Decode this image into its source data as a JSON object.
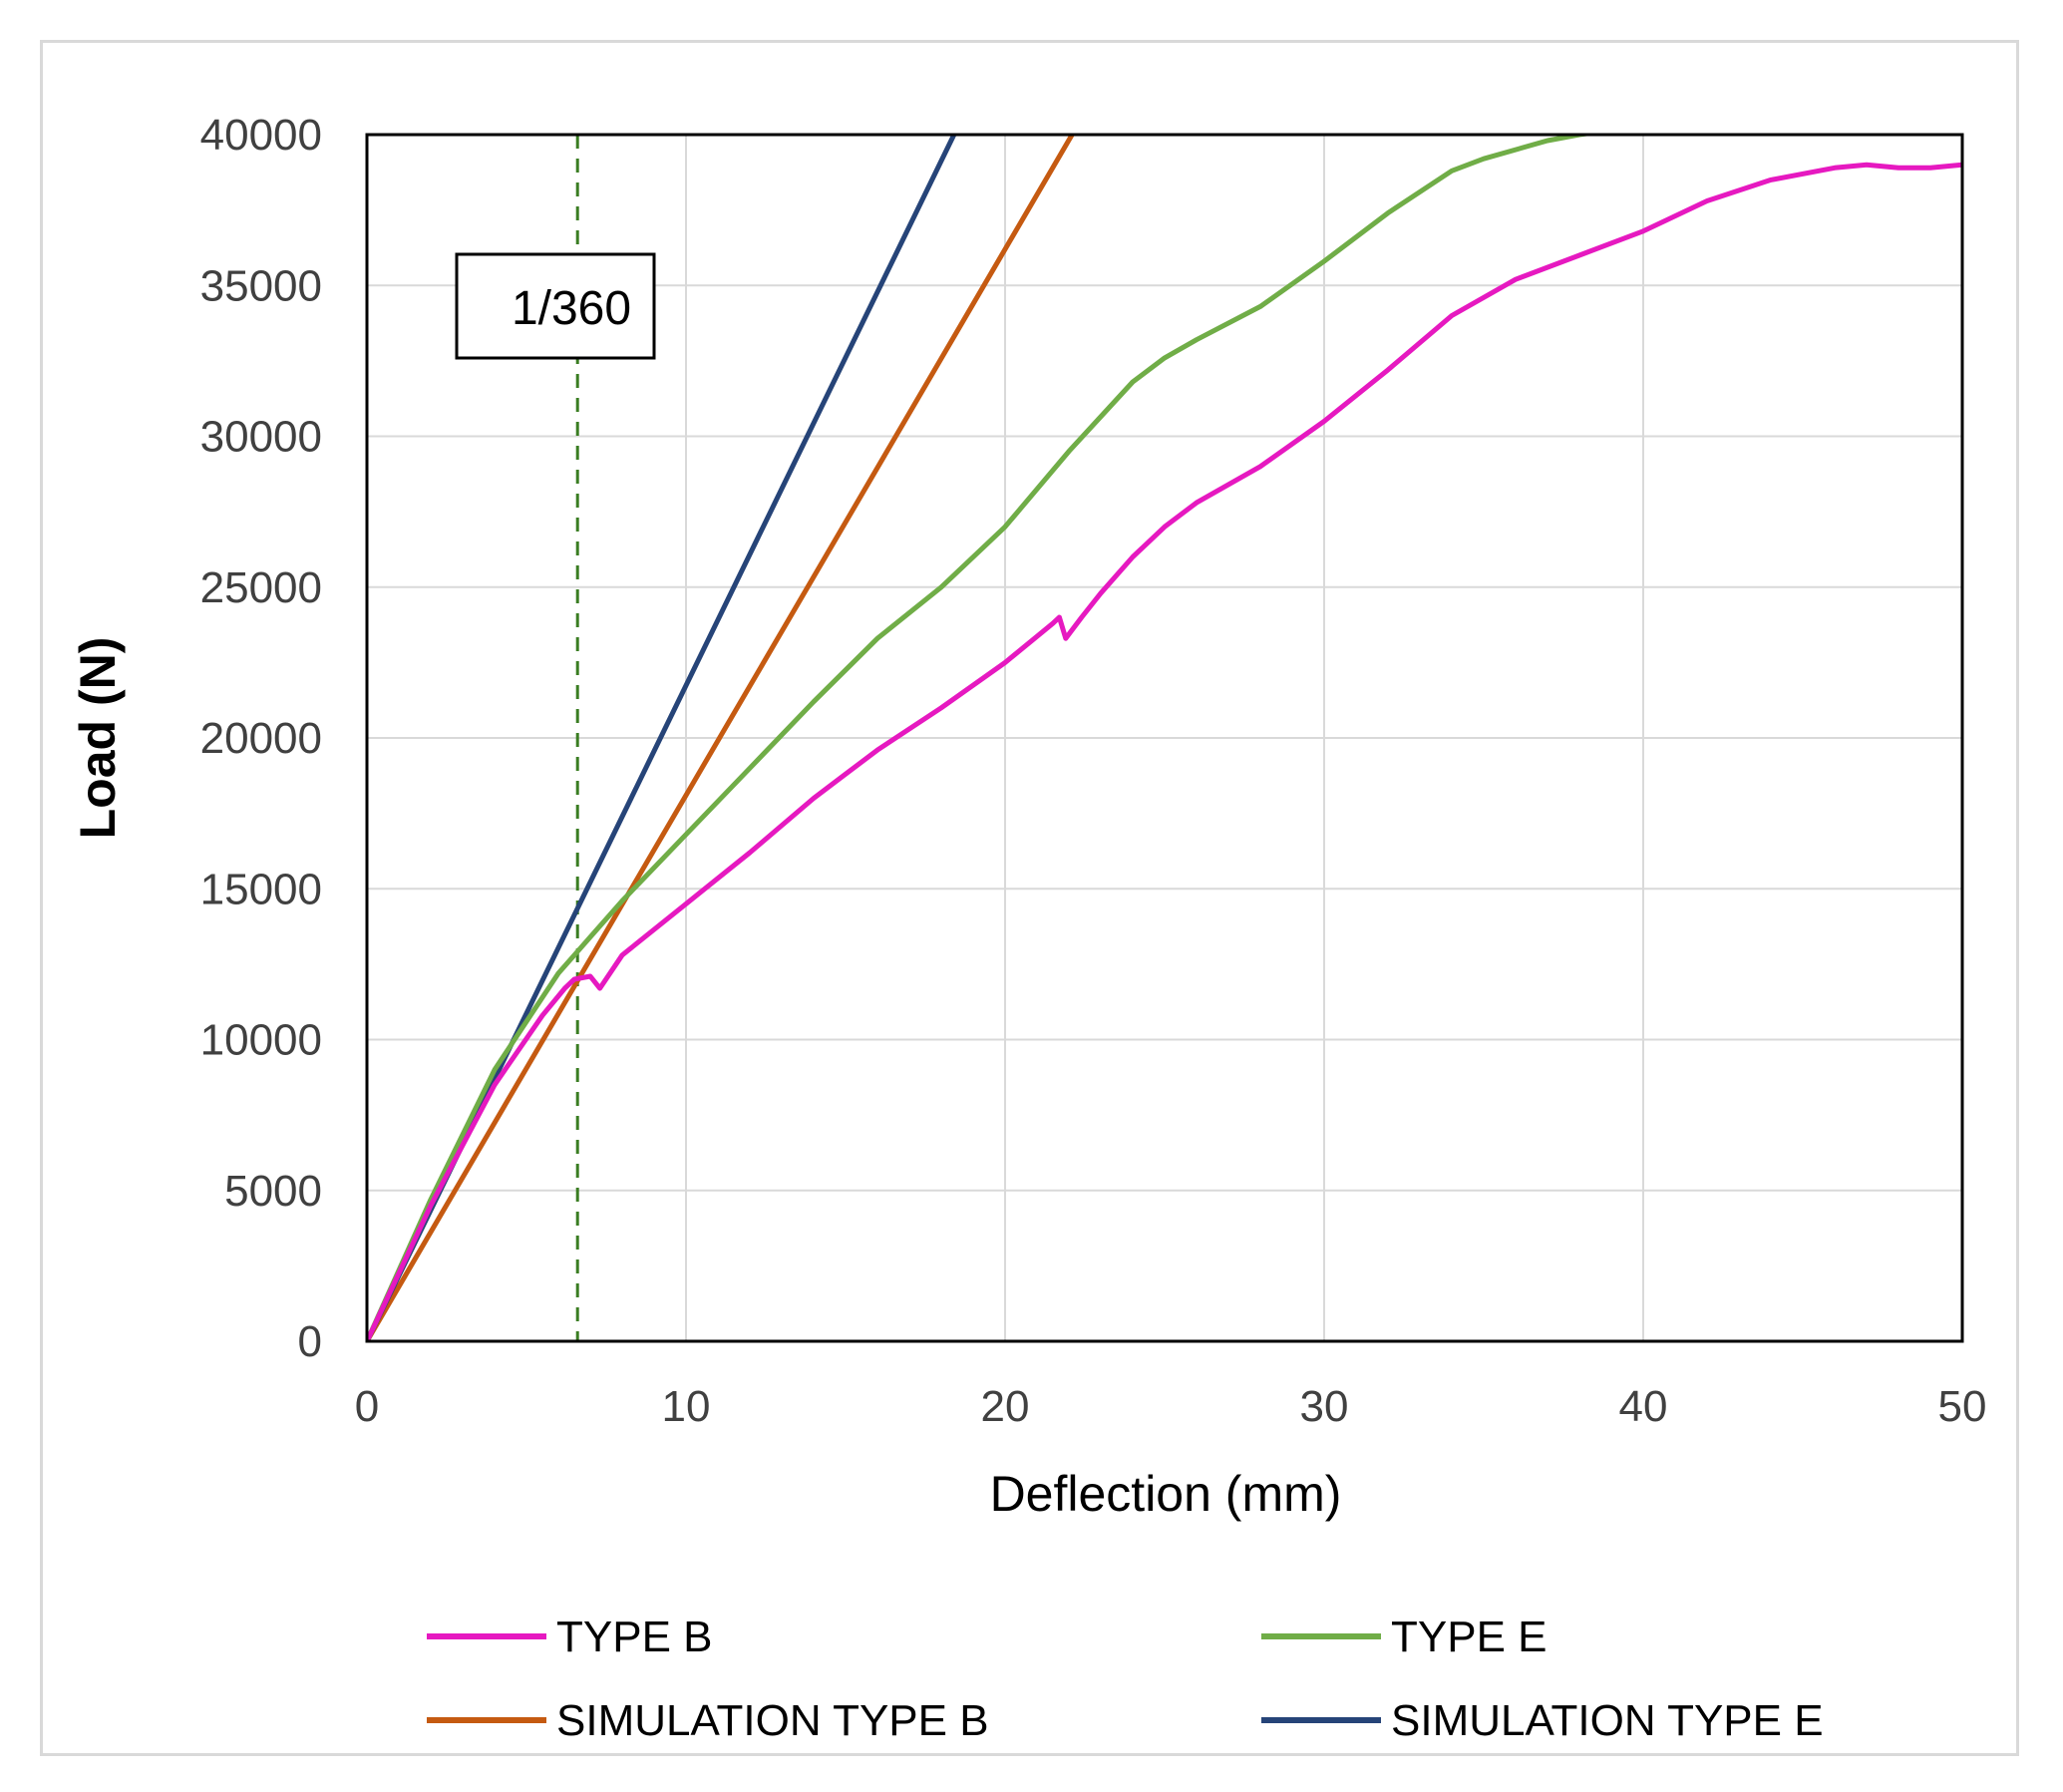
{
  "chart_data": {
    "type": "line",
    "title": "",
    "xlabel": "Deflection (mm)",
    "ylabel": "Load (N)",
    "xlim": [
      0,
      50
    ],
    "ylim": [
      0,
      40000
    ],
    "xticks": [
      "0",
      "10",
      "20",
      "30",
      "40",
      "50"
    ],
    "yticks": [
      "0",
      "5000",
      "10000",
      "15000",
      "20000",
      "25000",
      "30000",
      "35000",
      "40000"
    ],
    "grid": true,
    "legend_position": "bottom",
    "series": [
      {
        "name": "TYPE B",
        "color": "#e619c0",
        "x": [
          0,
          2,
          4,
          5.5,
          6.2,
          6.5,
          7,
          7.3,
          8,
          10,
          12,
          14,
          15,
          16,
          18,
          20,
          21.5,
          21.7,
          21.9,
          22.4,
          23,
          24,
          25,
          26,
          28,
          30,
          32,
          34,
          36,
          38,
          40,
          42,
          44,
          46,
          47,
          48,
          49,
          50
        ],
        "y": [
          0,
          4500,
          8500,
          10800,
          11700,
          12000,
          12100,
          11700,
          12800,
          14500,
          16200,
          18000,
          18800,
          19600,
          21000,
          22500,
          23800,
          24000,
          23300,
          24000,
          24800,
          26000,
          27000,
          27800,
          29000,
          30500,
          32200,
          34000,
          35200,
          36000,
          36800,
          37800,
          38500,
          38900,
          39000,
          38900,
          38900,
          39000
        ]
      },
      {
        "name": "TYPE E",
        "color": "#70ad47",
        "x": [
          0,
          2,
          4,
          6,
          7,
          8,
          10,
          12,
          14,
          16,
          18,
          20,
          22,
          24,
          25,
          26,
          28,
          30,
          32,
          34,
          35,
          36,
          37,
          38,
          38.7
        ],
        "y": [
          0,
          4700,
          9000,
          12200,
          13400,
          14600,
          16800,
          19000,
          21200,
          23300,
          25000,
          27000,
          29500,
          31800,
          32600,
          33200,
          34300,
          35800,
          37400,
          38800,
          39200,
          39500,
          39800,
          40000,
          40100
        ]
      },
      {
        "name": "SIMULATION TYPE B",
        "color": "#c55a11",
        "x": [
          0,
          22.1
        ],
        "y": [
          0,
          40000
        ]
      },
      {
        "name": "SIMULATION TYPE E",
        "color": "#264478",
        "x": [
          0,
          18.4
        ],
        "y": [
          0,
          40000
        ]
      }
    ],
    "reference_line": {
      "x": 6.6,
      "color": "#3a7d22",
      "style": "dashed"
    },
    "annotations": [
      {
        "text": "1/360"
      }
    ]
  }
}
